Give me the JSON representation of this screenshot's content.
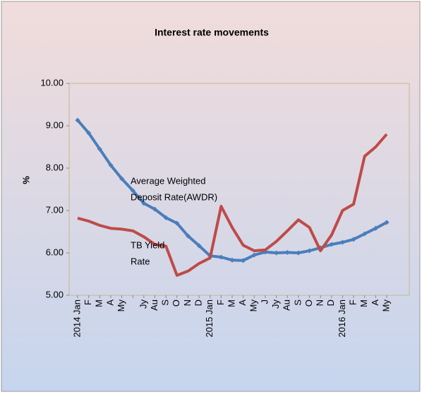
{
  "chart_data": {
    "type": "line",
    "title": "Interest rate movements",
    "y_label": "%",
    "categories": [
      "2014 Jan",
      "F",
      "M",
      "A",
      "My",
      null,
      "Jy",
      "Au",
      "S",
      "O",
      "N",
      "D",
      "2015 Jan",
      "F",
      "M",
      "A",
      "My",
      "J",
      "Jy",
      "Au",
      "S",
      "O",
      "N",
      "D",
      "2016 Jan",
      "F",
      "M",
      "A",
      "My"
    ],
    "series": [
      {
        "name": "Average Weighted Deposit Rate(AWDR)",
        "color": "#4a7ebb",
        "values": [
          9.13,
          8.83,
          8.45,
          8.07,
          7.75,
          7.47,
          7.17,
          7.03,
          6.83,
          6.7,
          6.4,
          6.17,
          5.93,
          5.9,
          5.83,
          5.82,
          5.95,
          6.02,
          6.0,
          6.01,
          6.0,
          6.05,
          6.12,
          6.2,
          6.25,
          6.32,
          6.45,
          6.58,
          6.72
        ]
      },
      {
        "name": "TB Yield Rate",
        "color": "#be4b48",
        "values": [
          6.82,
          6.75,
          6.65,
          6.58,
          6.56,
          6.52,
          6.38,
          6.2,
          6.16,
          5.47,
          5.57,
          5.75,
          5.88,
          7.1,
          6.6,
          6.18,
          6.05,
          6.07,
          6.27,
          6.52,
          6.78,
          6.6,
          6.05,
          6.42,
          7.0,
          7.15,
          8.28,
          8.5,
          8.8
        ]
      }
    ],
    "annotations": [
      [
        "Average Weighted",
        "Deposit Rate(AWDR)"
      ],
      [
        "TB Yield",
        "Rate"
      ]
    ],
    "ylim": [
      5,
      10
    ],
    "yticks": [
      {
        "value": 5,
        "label": "5.00"
      },
      {
        "value": 6,
        "label": "6.00"
      },
      {
        "value": 7,
        "label": "7.00"
      },
      {
        "value": 8,
        "label": "8.00"
      },
      {
        "value": 9,
        "label": "9.00"
      },
      {
        "value": 10,
        "label": "10.00"
      }
    ]
  }
}
